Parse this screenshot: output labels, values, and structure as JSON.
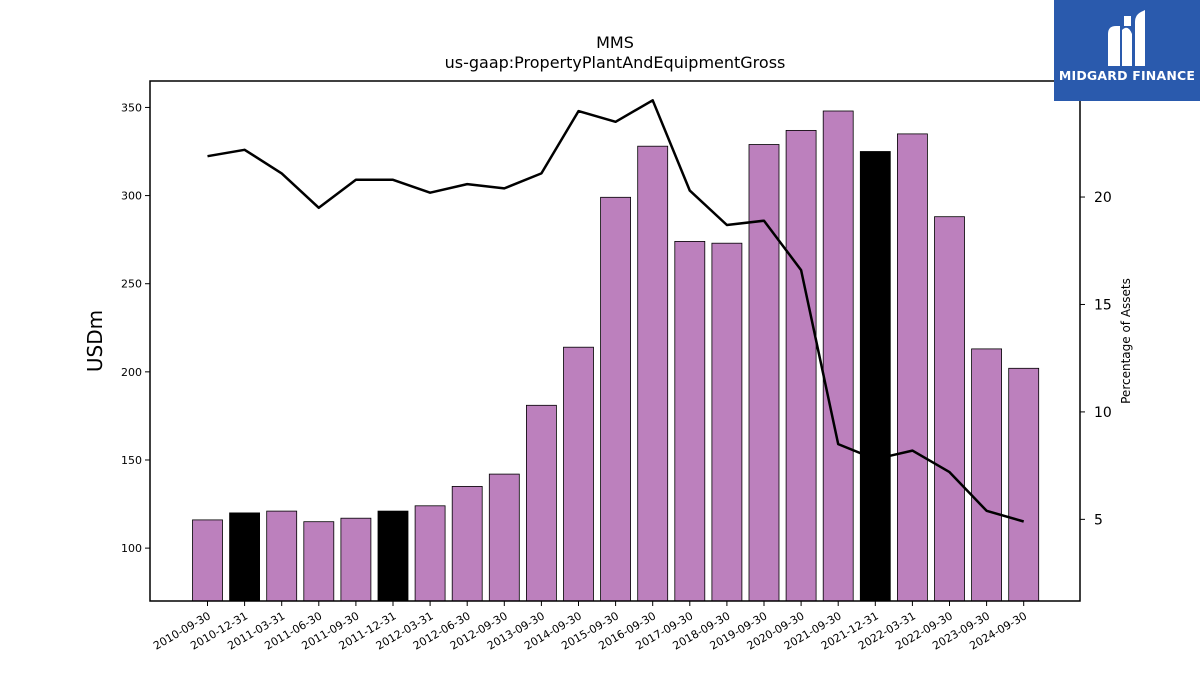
{
  "chart_data": {
    "type": "bar",
    "title": "MMS",
    "subtitle": "us-gaap:PropertyPlantAndEquipmentGross",
    "ylabel": "USDm",
    "y2label": "Percentage of Assets",
    "ylim": [
      70,
      365
    ],
    "y2lim": [
      1.2,
      25.4
    ],
    "yticks": [
      100,
      150,
      200,
      250,
      300,
      350
    ],
    "y2ticks": [
      5,
      10,
      15,
      20
    ],
    "categories": [
      "2010-09-30",
      "2010-12-31",
      "2011-03-31",
      "2011-06-30",
      "2011-09-30",
      "2011-12-31",
      "2012-03-31",
      "2012-06-30",
      "2012-09-30",
      "2013-09-30",
      "2014-09-30",
      "2015-09-30",
      "2016-09-30",
      "2017-09-30",
      "2018-09-30",
      "2019-09-30",
      "2020-09-30",
      "2021-09-30",
      "2021-12-31",
      "2022-03-31",
      "2022-09-30",
      "2023-09-30",
      "2024-09-30"
    ],
    "series": [
      {
        "type": "bar",
        "values": [
          116,
          120,
          121,
          115,
          117,
          121,
          124,
          135,
          142,
          181,
          214,
          299,
          328,
          274,
          273,
          329,
          337,
          348,
          325,
          335,
          288,
          213,
          202
        ],
        "highlight": [
          false,
          true,
          false,
          false,
          false,
          true,
          false,
          false,
          false,
          false,
          false,
          false,
          false,
          false,
          false,
          false,
          false,
          false,
          true,
          false,
          false,
          false,
          false
        ]
      },
      {
        "type": "line",
        "axis": "right",
        "values": [
          21.9,
          22.2,
          21.1,
          19.5,
          20.8,
          20.8,
          20.2,
          20.6,
          20.4,
          21.1,
          24.0,
          23.5,
          24.5,
          20.3,
          18.7,
          18.9,
          16.6,
          8.5,
          7.8,
          8.2,
          7.2,
          5.4,
          4.9
        ]
      }
    ],
    "colors": {
      "bar": "#bc80bd",
      "bar_highlight": "#000000",
      "line": "#000000"
    }
  },
  "logo": {
    "text": "MIDGARD FINANCE",
    "icon": "midgard-logo-icon"
  }
}
